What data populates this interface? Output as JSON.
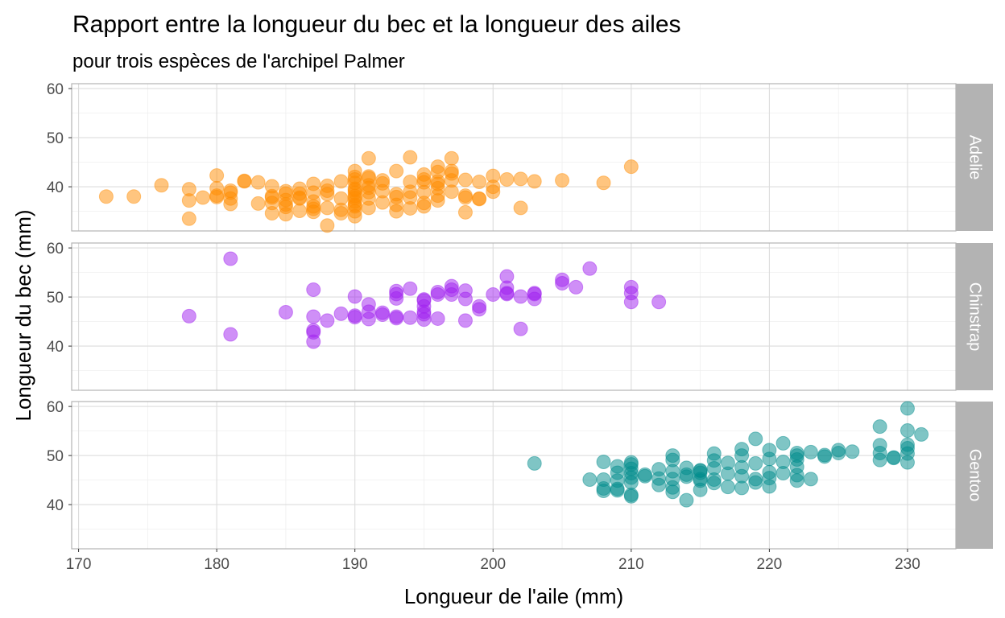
{
  "chart_data": {
    "type": "scatter",
    "title": "Rapport entre la longueur du bec et la longueur des ailes",
    "subtitle": "pour trois espèces de l'archipel Palmer",
    "xlabel": "Longueur de l'aile (mm)",
    "ylabel": "Longueur du bec (mm)",
    "xlim": [
      169.5,
      233.5
    ],
    "ylim": [
      31,
      61
    ],
    "xticks": [
      170,
      180,
      190,
      200,
      210,
      220,
      230
    ],
    "yticks": [
      40,
      50,
      60
    ],
    "grid": true,
    "facets": [
      {
        "name": "Adelie",
        "color": "#FF8C00",
        "points": [
          [
            172,
            38.0
          ],
          [
            174,
            38.0
          ],
          [
            176,
            40.3
          ],
          [
            178,
            39.5
          ],
          [
            178,
            37.2
          ],
          [
            178,
            33.5
          ],
          [
            179,
            37.8
          ],
          [
            180,
            42.3
          ],
          [
            180,
            39.7
          ],
          [
            180,
            38.2
          ],
          [
            180,
            37.9
          ],
          [
            181,
            38.8
          ],
          [
            181,
            37.6
          ],
          [
            181,
            36.5
          ],
          [
            181,
            39.2
          ],
          [
            182,
            41.1
          ],
          [
            182,
            41.2
          ],
          [
            183,
            36.6
          ],
          [
            183,
            40.9
          ],
          [
            184,
            38.1
          ],
          [
            184,
            37.8
          ],
          [
            184,
            36.7
          ],
          [
            184,
            40.1
          ],
          [
            184,
            34.6
          ],
          [
            185,
            39.1
          ],
          [
            185,
            38.6
          ],
          [
            185,
            37.3
          ],
          [
            185,
            35.9
          ],
          [
            185,
            36.4
          ],
          [
            185,
            34.4
          ],
          [
            186,
            37.8
          ],
          [
            186,
            39.6
          ],
          [
            186,
            35.1
          ],
          [
            186,
            38.6
          ],
          [
            186,
            37.6
          ],
          [
            187,
            40.6
          ],
          [
            187,
            35.5
          ],
          [
            187,
            37.0
          ],
          [
            187,
            38.8
          ],
          [
            187,
            34.9
          ],
          [
            187,
            36.0
          ],
          [
            188,
            32.1
          ],
          [
            188,
            39.2
          ],
          [
            188,
            38.5
          ],
          [
            188,
            40.2
          ],
          [
            188,
            35.7
          ],
          [
            189,
            41.1
          ],
          [
            189,
            37.6
          ],
          [
            189,
            35.3
          ],
          [
            189,
            34.6
          ],
          [
            190,
            40.8
          ],
          [
            190,
            39.6
          ],
          [
            190,
            38.8
          ],
          [
            190,
            37.0
          ],
          [
            190,
            36.0
          ],
          [
            190,
            35.0
          ],
          [
            190,
            42.0
          ],
          [
            190,
            41.5
          ],
          [
            190,
            39.3
          ],
          [
            190,
            37.7
          ],
          [
            190,
            36.3
          ],
          [
            190,
            34.0
          ],
          [
            190,
            43.2
          ],
          [
            190,
            38.1
          ],
          [
            191,
            45.8
          ],
          [
            191,
            42.1
          ],
          [
            191,
            41.8
          ],
          [
            191,
            40.3
          ],
          [
            191,
            38.9
          ],
          [
            191,
            37.6
          ],
          [
            191,
            35.7
          ],
          [
            191,
            39.8
          ],
          [
            192,
            40.7
          ],
          [
            192,
            36.8
          ],
          [
            192,
            39.1
          ],
          [
            192,
            41.3
          ],
          [
            193,
            37.9
          ],
          [
            193,
            38.5
          ],
          [
            193,
            43.2
          ],
          [
            193,
            35.0
          ],
          [
            193,
            36.3
          ],
          [
            194,
            41.0
          ],
          [
            194,
            37.8
          ],
          [
            194,
            46.0
          ],
          [
            194,
            39.0
          ],
          [
            194,
            35.6
          ],
          [
            195,
            38.9
          ],
          [
            195,
            36.7
          ],
          [
            195,
            41.5
          ],
          [
            195,
            42.5
          ],
          [
            195,
            40.9
          ],
          [
            195,
            36.0
          ],
          [
            196,
            44.1
          ],
          [
            196,
            41.1
          ],
          [
            196,
            39.7
          ],
          [
            196,
            38.2
          ],
          [
            196,
            37.2
          ],
          [
            196,
            43.0
          ],
          [
            196,
            40.6
          ],
          [
            197,
            42.7
          ],
          [
            197,
            45.8
          ],
          [
            197,
            41.3
          ],
          [
            197,
            39.0
          ],
          [
            197,
            43.2
          ],
          [
            198,
            41.4
          ],
          [
            198,
            38.2
          ],
          [
            198,
            37.8
          ],
          [
            198,
            34.8
          ],
          [
            199,
            41.0
          ],
          [
            199,
            37.6
          ],
          [
            199,
            37.5
          ],
          [
            200,
            42.2
          ],
          [
            200,
            40.0
          ],
          [
            200,
            39.0
          ],
          [
            201,
            41.5
          ],
          [
            202,
            41.6
          ],
          [
            202,
            35.7
          ],
          [
            203,
            41.1
          ],
          [
            205,
            41.3
          ],
          [
            208,
            40.8
          ],
          [
            210,
            44.1
          ]
        ]
      },
      {
        "name": "Chinstrap",
        "color": "#A020F0",
        "points": [
          [
            178,
            46.1
          ],
          [
            181,
            57.8
          ],
          [
            181,
            42.4
          ],
          [
            185,
            46.9
          ],
          [
            187,
            51.5
          ],
          [
            187,
            46.0
          ],
          [
            187,
            43.2
          ],
          [
            187,
            42.8
          ],
          [
            187,
            40.9
          ],
          [
            188,
            45.2
          ],
          [
            189,
            46.6
          ],
          [
            190,
            50.1
          ],
          [
            190,
            46.2
          ],
          [
            190,
            45.9
          ],
          [
            191,
            48.5
          ],
          [
            191,
            45.5
          ],
          [
            191,
            47.0
          ],
          [
            192,
            46.4
          ],
          [
            192,
            46.8
          ],
          [
            193,
            51.2
          ],
          [
            193,
            49.7
          ],
          [
            193,
            46.0
          ],
          [
            193,
            45.7
          ],
          [
            193,
            50.6
          ],
          [
            194,
            51.7
          ],
          [
            194,
            45.8
          ],
          [
            195,
            47.0
          ],
          [
            195,
            49.5
          ],
          [
            195,
            48.1
          ],
          [
            195,
            46.5
          ],
          [
            195,
            45.4
          ],
          [
            195,
            49.3
          ],
          [
            196,
            51.0
          ],
          [
            196,
            50.5
          ],
          [
            196,
            45.6
          ],
          [
            197,
            52.2
          ],
          [
            197,
            51.5
          ],
          [
            197,
            50.5
          ],
          [
            198,
            51.3
          ],
          [
            198,
            49.6
          ],
          [
            198,
            45.2
          ],
          [
            199,
            48.1
          ],
          [
            199,
            47.5
          ],
          [
            200,
            50.5
          ],
          [
            201,
            54.2
          ],
          [
            201,
            51.9
          ],
          [
            201,
            50.6
          ],
          [
            201,
            50.8
          ],
          [
            202,
            43.5
          ],
          [
            202,
            50.1
          ],
          [
            203,
            50.8
          ],
          [
            203,
            49.6
          ],
          [
            203,
            50.6
          ],
          [
            205,
            53.5
          ],
          [
            205,
            52.8
          ],
          [
            206,
            52.0
          ],
          [
            207,
            55.8
          ],
          [
            210,
            52.0
          ],
          [
            210,
            50.8
          ],
          [
            210,
            49.0
          ],
          [
            212,
            49.0
          ]
        ]
      },
      {
        "name": "Gentoo",
        "color": "#008B8B",
        "points": [
          [
            203,
            48.4
          ],
          [
            207,
            45.1
          ],
          [
            208,
            48.7
          ],
          [
            208,
            43.3
          ],
          [
            208,
            42.8
          ],
          [
            208,
            45.1
          ],
          [
            209,
            47.8
          ],
          [
            209,
            46.5
          ],
          [
            209,
            44.9
          ],
          [
            209,
            43.2
          ],
          [
            209,
            42.9
          ],
          [
            210,
            48.6
          ],
          [
            210,
            48.2
          ],
          [
            210,
            46.4
          ],
          [
            210,
            45.5
          ],
          [
            210,
            44.5
          ],
          [
            210,
            42.0
          ],
          [
            210,
            41.7
          ],
          [
            210,
            47.3
          ],
          [
            211,
            45.8
          ],
          [
            211,
            46.1
          ],
          [
            212,
            47.2
          ],
          [
            212,
            45.3
          ],
          [
            212,
            44.0
          ],
          [
            213,
            49.1
          ],
          [
            213,
            46.8
          ],
          [
            213,
            45.2
          ],
          [
            213,
            43.5
          ],
          [
            213,
            42.6
          ],
          [
            213,
            50.0
          ],
          [
            214,
            47.5
          ],
          [
            214,
            46.1
          ],
          [
            214,
            45.7
          ],
          [
            214,
            40.9
          ],
          [
            215,
            47.0
          ],
          [
            215,
            46.5
          ],
          [
            215,
            45.2
          ],
          [
            215,
            44.9
          ],
          [
            215,
            43.0
          ],
          [
            215,
            46.9
          ],
          [
            216,
            50.4
          ],
          [
            216,
            49.0
          ],
          [
            216,
            47.4
          ],
          [
            216,
            45.1
          ],
          [
            216,
            44.4
          ],
          [
            217,
            48.5
          ],
          [
            217,
            46.3
          ],
          [
            217,
            43.6
          ],
          [
            218,
            51.3
          ],
          [
            218,
            50.0
          ],
          [
            218,
            47.6
          ],
          [
            218,
            43.4
          ],
          [
            218,
            45.8
          ],
          [
            219,
            53.4
          ],
          [
            219,
            48.4
          ],
          [
            219,
            45.2
          ],
          [
            219,
            44.5
          ],
          [
            220,
            51.1
          ],
          [
            220,
            49.3
          ],
          [
            220,
            46.6
          ],
          [
            220,
            45.4
          ],
          [
            220,
            43.7
          ],
          [
            221,
            52.5
          ],
          [
            221,
            48.7
          ],
          [
            221,
            46.4
          ],
          [
            222,
            50.5
          ],
          [
            222,
            49.2
          ],
          [
            222,
            47.7
          ],
          [
            222,
            46.0
          ],
          [
            222,
            44.9
          ],
          [
            222,
            50.0
          ],
          [
            223,
            50.7
          ],
          [
            223,
            45.2
          ],
          [
            224,
            50.1
          ],
          [
            224,
            49.8
          ],
          [
            225,
            51.1
          ],
          [
            225,
            50.5
          ],
          [
            226,
            50.8
          ],
          [
            228,
            55.9
          ],
          [
            228,
            52.1
          ],
          [
            228,
            50.5
          ],
          [
            228,
            49.1
          ],
          [
            229,
            49.5
          ],
          [
            229,
            49.6
          ],
          [
            230,
            59.6
          ],
          [
            230,
            55.1
          ],
          [
            230,
            52.2
          ],
          [
            230,
            51.5
          ],
          [
            230,
            50.4
          ],
          [
            230,
            48.6
          ],
          [
            231,
            54.3
          ]
        ]
      }
    ]
  }
}
